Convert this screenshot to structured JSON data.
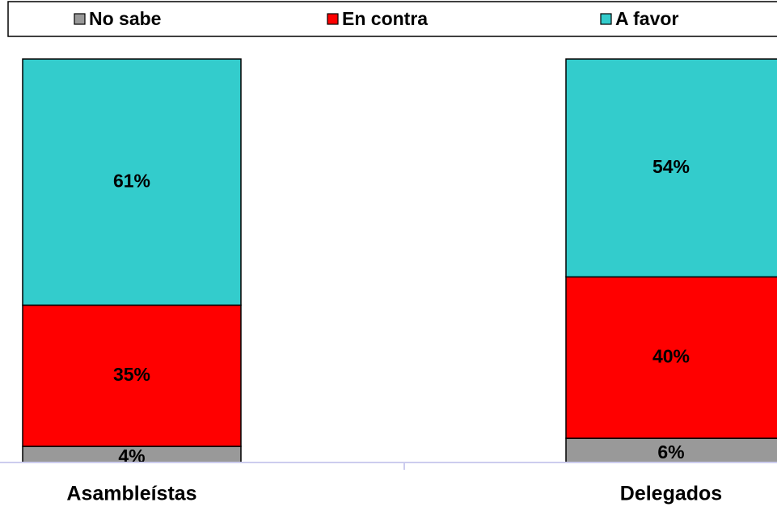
{
  "chart_data": {
    "type": "bar",
    "stacked": true,
    "categories": [
      "Asambleístas",
      "Delegados"
    ],
    "series": [
      {
        "name": "No sabe",
        "color": "#999999",
        "values": [
          4,
          6
        ],
        "value_labels": [
          "4%",
          "6%"
        ]
      },
      {
        "name": "En contra",
        "color": "#ff0000",
        "values": [
          35,
          40
        ],
        "value_labels": [
          "35%",
          "40%"
        ]
      },
      {
        "name": "A favor",
        "color": "#33cccc",
        "values": [
          61,
          54
        ],
        "value_labels": [
          "61%",
          "54%"
        ]
      }
    ]
  }
}
